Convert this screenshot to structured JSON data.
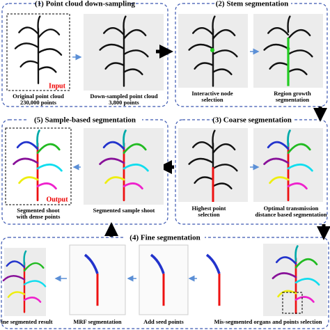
{
  "panels": [
    {
      "title": "(1) Point cloud down-sampling",
      "captions": [
        [
          "Original point cloud",
          "230,000 points"
        ],
        [
          "Down-sampled point cloud",
          "3,800 points"
        ]
      ]
    },
    {
      "title": "(2) Stem segmentation",
      "captions": [
        [
          "Interactive node",
          "selection"
        ],
        [
          "Region growth",
          "segmentation"
        ]
      ]
    },
    {
      "title": "(3) Coarse segmentation",
      "captions": [
        [
          "Highest point",
          "selection"
        ],
        [
          "Optimal transmission",
          "distance based segmentation"
        ]
      ]
    },
    {
      "title": "(4) Fine segmentation",
      "captions": [
        [
          "Fine segmented result"
        ],
        [
          "MRF segmentation"
        ],
        [
          "Add seed points"
        ],
        [
          "Mis-segmented organs and points selection"
        ]
      ]
    },
    {
      "title": "(5) Sample-based segmentation",
      "captions": [
        [
          "Segmented shoot",
          "with dense points"
        ],
        [
          "Segmented sample shoot"
        ]
      ]
    }
  ],
  "labels": {
    "input": "Input",
    "output": "Output"
  }
}
